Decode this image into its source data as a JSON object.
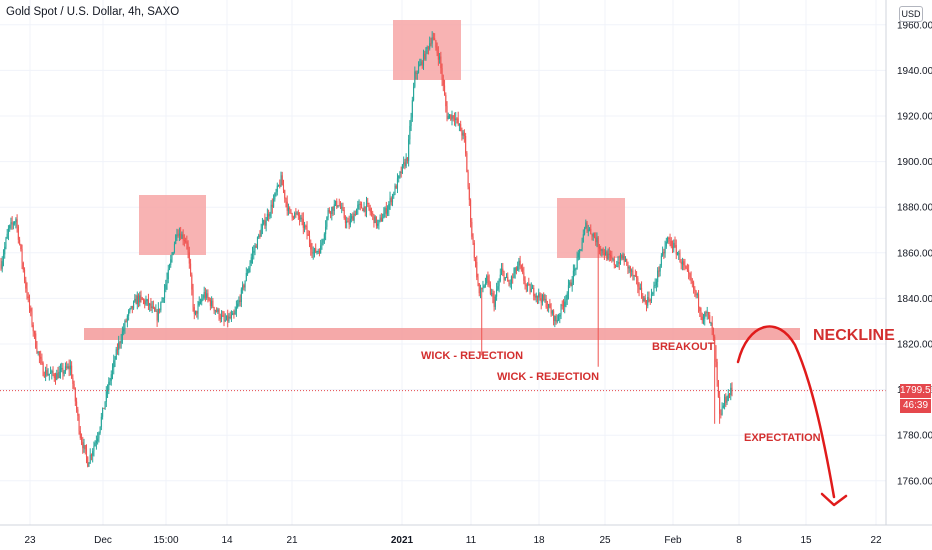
{
  "header": {
    "title": "Gold Spot / U.S. Dollar, 4h, SAXO",
    "currency": "USD"
  },
  "price_tags": {
    "last_price": "1799.53",
    "countdown": "46:39"
  },
  "annotations": {
    "neckline": "NECKLINE",
    "wick1": "WICK - REJECTION",
    "wick2": "WICK - REJECTION",
    "breakout": "BREAKOUT",
    "expectation": "EXPECTATION"
  },
  "colors": {
    "up": "#26a69a",
    "down": "#ef5350",
    "zone": "#f7a6a6",
    "accent": "#d32f2f"
  },
  "chart_data": {
    "type": "candlestick",
    "title": "Gold Spot / U.S. Dollar, 4h, SAXO",
    "ylim": [
      1745,
      1968
    ],
    "y_ticks": [
      1760,
      1780,
      1800,
      1820,
      1840,
      1860,
      1880,
      1900,
      1920,
      1940,
      1960
    ],
    "x_ticks": [
      "23",
      "Dec",
      "15:00",
      "14",
      "21",
      "2021",
      "11",
      "18",
      "25",
      "Feb",
      "8",
      "15",
      "22"
    ],
    "grid": true,
    "last_price": 1799.53,
    "neckline": 1823,
    "price_anchors": [
      [
        0,
        1855
      ],
      [
        6,
        1870
      ],
      [
        12,
        1875
      ],
      [
        20,
        1845
      ],
      [
        28,
        1820
      ],
      [
        34,
        1808
      ],
      [
        44,
        1806
      ],
      [
        56,
        1810
      ],
      [
        64,
        1780
      ],
      [
        70,
        1768
      ],
      [
        78,
        1780
      ],
      [
        86,
        1800
      ],
      [
        94,
        1818
      ],
      [
        102,
        1832
      ],
      [
        110,
        1840
      ],
      [
        118,
        1838
      ],
      [
        126,
        1832
      ],
      [
        134,
        1848
      ],
      [
        142,
        1870
      ],
      [
        150,
        1865
      ],
      [
        156,
        1832
      ],
      [
        164,
        1842
      ],
      [
        172,
        1836
      ],
      [
        180,
        1830
      ],
      [
        188,
        1832
      ],
      [
        194,
        1842
      ],
      [
        202,
        1858
      ],
      [
        210,
        1870
      ],
      [
        218,
        1880
      ],
      [
        226,
        1892
      ],
      [
        232,
        1878
      ],
      [
        240,
        1876
      ],
      [
        246,
        1870
      ],
      [
        252,
        1860
      ],
      [
        258,
        1862
      ],
      [
        264,
        1878
      ],
      [
        272,
        1882
      ],
      [
        280,
        1872
      ],
      [
        288,
        1880
      ],
      [
        296,
        1880
      ],
      [
        304,
        1872
      ],
      [
        312,
        1880
      ],
      [
        318,
        1888
      ],
      [
        324,
        1897
      ],
      [
        328,
        1902
      ],
      [
        334,
        1938
      ],
      [
        340,
        1944
      ],
      [
        348,
        1955
      ],
      [
        354,
        1945
      ],
      [
        360,
        1920
      ],
      [
        366,
        1920
      ],
      [
        374,
        1910
      ],
      [
        380,
        1868
      ],
      [
        386,
        1842
      ],
      [
        392,
        1848
      ],
      [
        398,
        1838
      ],
      [
        404,
        1852
      ],
      [
        410,
        1846
      ],
      [
        418,
        1855
      ],
      [
        424,
        1845
      ],
      [
        432,
        1842
      ],
      [
        440,
        1838
      ],
      [
        448,
        1830
      ],
      [
        454,
        1838
      ],
      [
        460,
        1847
      ],
      [
        466,
        1858
      ],
      [
        472,
        1872
      ],
      [
        478,
        1868
      ],
      [
        484,
        1862
      ],
      [
        490,
        1858
      ],
      [
        496,
        1855
      ],
      [
        502,
        1858
      ],
      [
        508,
        1852
      ],
      [
        514,
        1846
      ],
      [
        520,
        1838
      ],
      [
        526,
        1842
      ],
      [
        532,
        1855
      ],
      [
        538,
        1866
      ],
      [
        544,
        1862
      ],
      [
        550,
        1855
      ],
      [
        556,
        1848
      ],
      [
        562,
        1840
      ],
      [
        566,
        1832
      ],
      [
        570,
        1833
      ],
      [
        574,
        1826
      ],
      [
        576,
        1818
      ],
      [
        580,
        1788
      ],
      [
        584,
        1795
      ],
      [
        590,
        1800
      ]
    ],
    "resistance_zones": [
      {
        "start": 1849,
        "end": 1854,
        "low": 1859,
        "high": 1885
      },
      {
        "start": 1881,
        "end": 1891,
        "low": 1936,
        "high": 1962
      },
      {
        "start": 2005,
        "end": 2013,
        "low": 1859,
        "high": 1885
      }
    ]
  }
}
